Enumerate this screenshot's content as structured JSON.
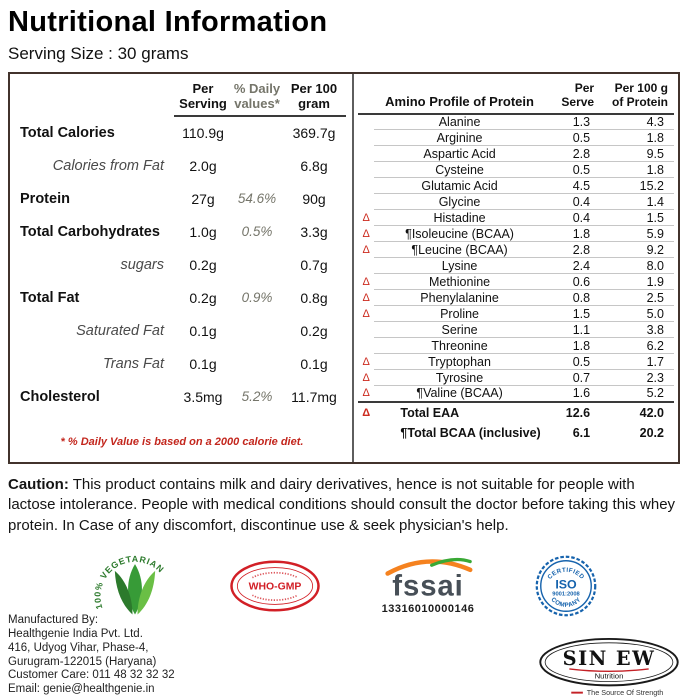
{
  "header": {
    "title": "Nutritional Information",
    "serving_size": "Serving Size : 30 grams"
  },
  "nutrition_table": {
    "columns": [
      "Per\nServing",
      "% Daily\nvalues*",
      "Per 100\ngram"
    ],
    "rows": [
      {
        "label": "Total Calories",
        "per_serving": "110.9g",
        "daily": "",
        "per_100g": "369.7g",
        "sub": false
      },
      {
        "label": "Calories from Fat",
        "per_serving": "2.0g",
        "daily": "",
        "per_100g": "6.8g",
        "sub": true
      },
      {
        "label": "Protein",
        "per_serving": "27g",
        "daily": "54.6%",
        "per_100g": "90g",
        "sub": false
      },
      {
        "label": "Total Carbohydrates",
        "per_serving": "1.0g",
        "daily": "0.5%",
        "per_100g": "3.3g",
        "sub": false
      },
      {
        "label": "sugars",
        "per_serving": "0.2g",
        "daily": "",
        "per_100g": "0.7g",
        "sub": true
      },
      {
        "label": "Total Fat",
        "per_serving": "0.2g",
        "daily": "0.9%",
        "per_100g": "0.8g",
        "sub": false
      },
      {
        "label": "Saturated Fat",
        "per_serving": "0.1g",
        "daily": "",
        "per_100g": "0.2g",
        "sub": true
      },
      {
        "label": "Trans Fat",
        "per_serving": "0.1g",
        "daily": "",
        "per_100g": "0.1g",
        "sub": true
      },
      {
        "label": "Cholesterol",
        "per_serving": "3.5mg",
        "daily": "5.2%",
        "per_100g": "11.7mg",
        "sub": false
      }
    ],
    "footnote": "* % Daily Value is based on a 2000 calorie diet."
  },
  "amino_table": {
    "title": "Amino Profile of Protein",
    "columns": [
      "Per\nServe",
      "Per 100 g\nof Protein"
    ],
    "eaa_marker": "Δ",
    "rows": [
      {
        "name": "Alanine",
        "per_serve": "1.3",
        "per_100g": "4.3",
        "eaa": false
      },
      {
        "name": "Arginine",
        "per_serve": "0.5",
        "per_100g": "1.8",
        "eaa": false
      },
      {
        "name": "Aspartic Acid",
        "per_serve": "2.8",
        "per_100g": "9.5",
        "eaa": false
      },
      {
        "name": "Cysteine",
        "per_serve": "0.5",
        "per_100g": "1.8",
        "eaa": false
      },
      {
        "name": "Glutamic Acid",
        "per_serve": "4.5",
        "per_100g": "15.2",
        "eaa": false
      },
      {
        "name": "Glycine",
        "per_serve": "0.4",
        "per_100g": "1.4",
        "eaa": false
      },
      {
        "name": "Histadine",
        "per_serve": "0.4",
        "per_100g": "1.5",
        "eaa": true
      },
      {
        "name": "¶Isoleucine (BCAA)",
        "per_serve": "1.8",
        "per_100g": "5.9",
        "eaa": true
      },
      {
        "name": "¶Leucine (BCAA)",
        "per_serve": "2.8",
        "per_100g": "9.2",
        "eaa": true
      },
      {
        "name": "Lysine",
        "per_serve": "2.4",
        "per_100g": "8.0",
        "eaa": false
      },
      {
        "name": "Methionine",
        "per_serve": "0.6",
        "per_100g": "1.9",
        "eaa": true
      },
      {
        "name": "Phenylalanine",
        "per_serve": "0.8",
        "per_100g": "2.5",
        "eaa": true
      },
      {
        "name": "Proline",
        "per_serve": "1.5",
        "per_100g": "5.0",
        "eaa": true
      },
      {
        "name": "Serine",
        "per_serve": "1.1",
        "per_100g": "3.8",
        "eaa": false
      },
      {
        "name": "Threonine",
        "per_serve": "1.8",
        "per_100g": "6.2",
        "eaa": false
      },
      {
        "name": "Tryptophan",
        "per_serve": "0.5",
        "per_100g": "1.7",
        "eaa": true
      },
      {
        "name": "Tyrosine",
        "per_serve": "0.7",
        "per_100g": "2.3",
        "eaa": true
      },
      {
        "name": "¶Valine (BCAA)",
        "per_serve": "1.6",
        "per_100g": "5.2",
        "eaa": true
      }
    ],
    "totals": [
      {
        "name": "Total EAA",
        "per_serve": "12.6",
        "per_100g": "42.0",
        "eaa": true
      },
      {
        "name": "¶Total BCAA (inclusive)",
        "per_serve": "6.1",
        "per_100g": "20.2",
        "eaa": false
      }
    ]
  },
  "caution": {
    "label": "Caution:",
    "body": " This product contains milk and dairy derivatives, hence is not suitable for people with lactose intolerance. People with medical conditions should consult the doctor before taking this whey protein. In Case of any discomfort, discontinue use & seek physician's help."
  },
  "badges": {
    "vegetarian_text": "100% VEGETARIAN",
    "who_gmp": "WHO-GMP",
    "fssai": "fssai",
    "fssai_number": "13316010000146",
    "iso_top": "CERTIFIED",
    "iso_center": "ISO",
    "iso_sub": "9001:2008",
    "iso_bottom": "COMPANY"
  },
  "manufacturer": {
    "lines": [
      "Manufactured By:",
      "Healthgenie India Pvt. Ltd.",
      "416, Udyog Vihar, Phase-4,",
      "Gurugram-122015 (Haryana)",
      "Customer Care: 011 48 32 32 32",
      "Email: genie@healthgenie.in"
    ]
  },
  "brand": {
    "name": "SIN EW",
    "sub": "Nutrition",
    "tagline": "The Source Of Strength"
  },
  "colors": {
    "accent_red": "#c3261d",
    "who_red": "#d21f26",
    "iso_blue": "#1663ad",
    "veg_green": "#2c7a2c",
    "fssai_orange": "#f5821f",
    "fssai_green": "#39a935"
  }
}
